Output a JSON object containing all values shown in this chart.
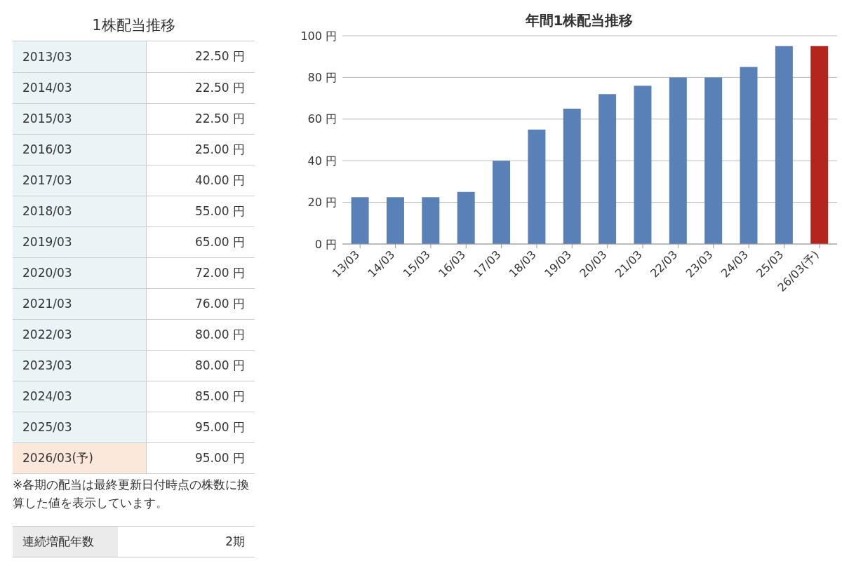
{
  "chart_data": [
    {
      "type": "other",
      "title": "1株配当推移",
      "categories": [
        "2013/03",
        "2014/03",
        "2015/03",
        "2016/03",
        "2017/03",
        "2018/03",
        "2019/03",
        "2020/03",
        "2021/03",
        "2022/03",
        "2023/03",
        "2024/03",
        "2025/03",
        "2026/03(予)"
      ],
      "value_labels": [
        "22.50 円",
        "22.50 円",
        "22.50 円",
        "25.00 円",
        "40.00 円",
        "55.00 円",
        "65.00 円",
        "72.00 円",
        "76.00 円",
        "80.00 円",
        "80.00 円",
        "85.00 円",
        "95.00 円",
        "95.00 円"
      ],
      "colors": [
        "#eaf4f6",
        "#eaf4f6",
        "#eaf4f6",
        "#eaf4f6",
        "#eaf4f6",
        "#eaf4f6",
        "#eaf4f6",
        "#eaf4f6",
        "#eaf4f6",
        "#eaf4f6",
        "#eaf4f6",
        "#eaf4f6",
        "#eaf4f6",
        "#fbe8da"
      ],
      "annotations": [
        "※各期の配当は最終更新日付時点の株数に換算した値を表示しています。",
        "連続増配年数",
        "2期"
      ]
    },
    {
      "type": "bar",
      "title": "年間1株配当推移",
      "categories": [
        "13/03",
        "14/03",
        "15/03",
        "16/03",
        "17/03",
        "18/03",
        "19/03",
        "20/03",
        "21/03",
        "22/03",
        "23/03",
        "24/03",
        "25/03",
        "26/03(予)"
      ],
      "values": [
        22.5,
        22.5,
        22.5,
        25,
        40,
        55,
        65,
        72,
        76,
        80,
        80,
        85,
        95,
        95
      ],
      "colors": [
        "#5a80b8",
        "#5a80b8",
        "#5a80b8",
        "#5a80b8",
        "#5a80b8",
        "#5a80b8",
        "#5a80b8",
        "#5a80b8",
        "#5a80b8",
        "#5a80b8",
        "#5a80b8",
        "#5a80b8",
        "#5a80b8",
        "#b3261e"
      ],
      "ylim": [
        0,
        100
      ],
      "yticks": [
        {
          "value": 0,
          "label": "0 円"
        },
        {
          "value": 20,
          "label": "20 円"
        },
        {
          "value": 40,
          "label": "40 円"
        },
        {
          "value": 60,
          "label": "60 円"
        },
        {
          "value": 80,
          "label": "80 円"
        },
        {
          "value": 100,
          "label": "100 円"
        }
      ],
      "grid": "y"
    }
  ]
}
